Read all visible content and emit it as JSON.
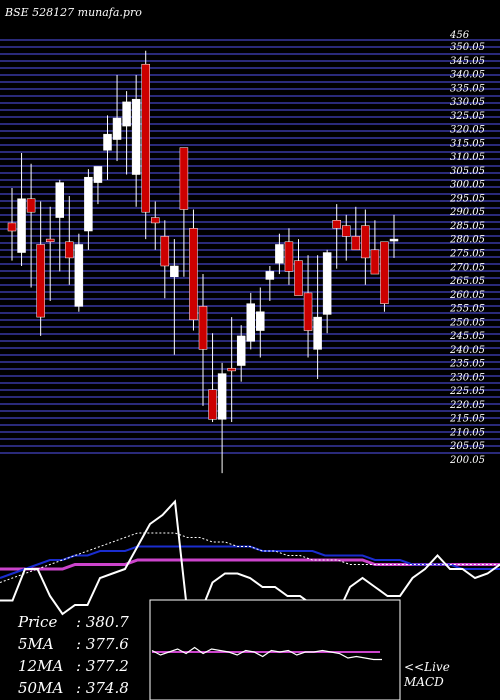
{
  "header": {
    "title": "BSE 528127 munafa.pro",
    "top_label": "456"
  },
  "chart_data": {
    "type": "candlestick",
    "ylim": [
      200,
      355
    ],
    "grid": true,
    "y_ticks": [
      "350.05",
      "345.05",
      "340.05",
      "335.05",
      "330.05",
      "325.05",
      "320.05",
      "315.05",
      "310.05",
      "305.05",
      "300.05",
      "295.05",
      "290.05",
      "285.05",
      "280.05",
      "275.05",
      "270.05",
      "265.05",
      "260.05",
      "255.05",
      "250.05",
      "245.05",
      "240.05",
      "235.05",
      "230.05",
      "225.05",
      "220.05",
      "215.05",
      "210.05",
      "205.05",
      "200.05"
    ],
    "candles": [
      {
        "o": 287,
        "h": 300,
        "l": 273,
        "c": 284
      },
      {
        "o": 276,
        "h": 313,
        "l": 271,
        "c": 296
      },
      {
        "o": 296,
        "h": 309,
        "l": 263,
        "c": 291
      },
      {
        "o": 279,
        "h": 295,
        "l": 245,
        "c": 252
      },
      {
        "o": 281,
        "h": 293,
        "l": 258,
        "c": 280
      },
      {
        "o": 289,
        "h": 303,
        "l": 269,
        "c": 302
      },
      {
        "o": 280,
        "h": 297,
        "l": 264,
        "c": 274
      },
      {
        "o": 256,
        "h": 283,
        "l": 254,
        "c": 279
      },
      {
        "o": 284,
        "h": 307,
        "l": 277,
        "c": 304
      },
      {
        "o": 302,
        "h": 308,
        "l": 294,
        "c": 308
      },
      {
        "o": 314,
        "h": 327,
        "l": 303,
        "c": 320
      },
      {
        "o": 318,
        "h": 342,
        "l": 310,
        "c": 326
      },
      {
        "o": 323,
        "h": 336,
        "l": 305,
        "c": 332
      },
      {
        "o": 305,
        "h": 342,
        "l": 293,
        "c": 333
      },
      {
        "o": 346,
        "h": 351,
        "l": 281,
        "c": 291
      },
      {
        "o": 289,
        "h": 295,
        "l": 277,
        "c": 287
      },
      {
        "o": 282,
        "h": 288,
        "l": 259,
        "c": 271
      },
      {
        "o": 267,
        "h": 281,
        "l": 238,
        "c": 271
      },
      {
        "o": 315,
        "h": 315,
        "l": 267,
        "c": 292
      },
      {
        "o": 285,
        "h": 292,
        "l": 247,
        "c": 251
      },
      {
        "o": 256,
        "h": 268,
        "l": 219,
        "c": 240
      },
      {
        "o": 225,
        "h": 246,
        "l": 213,
        "c": 214
      },
      {
        "o": 214,
        "h": 235,
        "l": 194,
        "c": 231
      },
      {
        "o": 233,
        "h": 252,
        "l": 213,
        "c": 232
      },
      {
        "o": 234,
        "h": 249,
        "l": 228,
        "c": 245
      },
      {
        "o": 243,
        "h": 261,
        "l": 240,
        "c": 257
      },
      {
        "o": 247,
        "h": 263,
        "l": 237,
        "c": 254
      },
      {
        "o": 266,
        "h": 271,
        "l": 258,
        "c": 269
      },
      {
        "o": 272,
        "h": 283,
        "l": 268,
        "c": 279
      },
      {
        "o": 280,
        "h": 285,
        "l": 264,
        "c": 269
      },
      {
        "o": 273,
        "h": 281,
        "l": 261,
        "c": 260
      },
      {
        "o": 261,
        "h": 275,
        "l": 237,
        "c": 247
      },
      {
        "o": 240,
        "h": 275,
        "l": 229,
        "c": 252
      },
      {
        "o": 253,
        "h": 277,
        "l": 246,
        "c": 276
      },
      {
        "o": 288,
        "h": 294,
        "l": 270,
        "c": 285
      },
      {
        "o": 286,
        "h": 290,
        "l": 273,
        "c": 282
      },
      {
        "o": 282,
        "h": 293,
        "l": 277,
        "c": 277
      },
      {
        "o": 286,
        "h": 292,
        "l": 264,
        "c": 274
      },
      {
        "o": 277,
        "h": 288,
        "l": 269,
        "c": 268
      },
      {
        "o": 280,
        "h": 279,
        "l": 254,
        "c": 257
      },
      {
        "o": 281,
        "h": 290,
        "l": 274,
        "c": 281
      }
    ],
    "indicator_lines": {
      "white": [
        -9,
        -9,
        -2,
        -2,
        -8,
        -12,
        -10,
        -10,
        -4,
        -3,
        -2,
        3,
        8,
        10,
        13,
        -12,
        -12,
        -5,
        -3,
        -3,
        -4,
        -6,
        -6,
        -8,
        -8,
        -10,
        -14,
        -12,
        -6,
        -4,
        -6,
        -8,
        -8,
        -4,
        -2,
        1,
        -2,
        -2,
        -4,
        -3,
        -1
      ],
      "blue": [
        -4,
        -3,
        -2,
        -1,
        0,
        0,
        1,
        1,
        2,
        2,
        2,
        3,
        3,
        3,
        3,
        3,
        3,
        3,
        3,
        3,
        3,
        2,
        2,
        2,
        2,
        2,
        1,
        1,
        1,
        1,
        0,
        0,
        0,
        -1,
        -1,
        -1,
        -1,
        -2,
        -2,
        -2,
        -2
      ],
      "violet": [
        -2,
        -2,
        -2,
        -2,
        -2,
        -2,
        -1,
        -1,
        -1,
        -1,
        -1,
        0,
        0,
        0,
        0,
        0,
        0,
        0,
        0,
        0,
        0,
        0,
        0,
        0,
        0,
        0,
        0,
        0,
        0,
        0,
        -1,
        -1,
        -1,
        -1,
        -1,
        -1,
        -1,
        -1,
        -1,
        -1,
        -1
      ],
      "dotted": [
        -5,
        -4,
        -3,
        -2,
        -1,
        0,
        1,
        2,
        3,
        4,
        5,
        6,
        6,
        6,
        6,
        5,
        5,
        4,
        4,
        3,
        3,
        2,
        2,
        1,
        1,
        0,
        0,
        0,
        -1,
        -1,
        -1,
        -1,
        -1,
        -1,
        -1,
        -1,
        -1,
        -1,
        -1,
        -1,
        -1
      ]
    },
    "macd_inset": {
      "white": [
        0.1,
        -0.2,
        0.0,
        0.2,
        -0.1,
        0.3,
        -0.1,
        0.2,
        0.1,
        0.0,
        -0.2,
        0.1,
        0.0,
        -0.3,
        0.1,
        0.0,
        0.1,
        -0.2,
        0.0,
        0.0,
        0.1,
        0.0,
        -0.1,
        -0.4,
        -0.3,
        -0.4,
        -0.5,
        -0.5
      ],
      "violet": 0.0
    }
  },
  "stats": [
    {
      "label": "Price",
      "value": ": 380.7"
    },
    {
      "label": "5MA",
      "value": ": 377.6"
    },
    {
      "label": "12MA",
      "value": ": 377.2"
    },
    {
      "label": "50MA",
      "value": ": 374.8"
    }
  ],
  "footer": {
    "live_macd_line1": "<<Live",
    "live_macd_line2": "MACD"
  },
  "colors": {
    "bull": "#ffffff",
    "bear": "#cc0000",
    "grid": "#2a2a7a",
    "blue_line": "#1a2dcf",
    "violet_line": "#cc44cc"
  }
}
